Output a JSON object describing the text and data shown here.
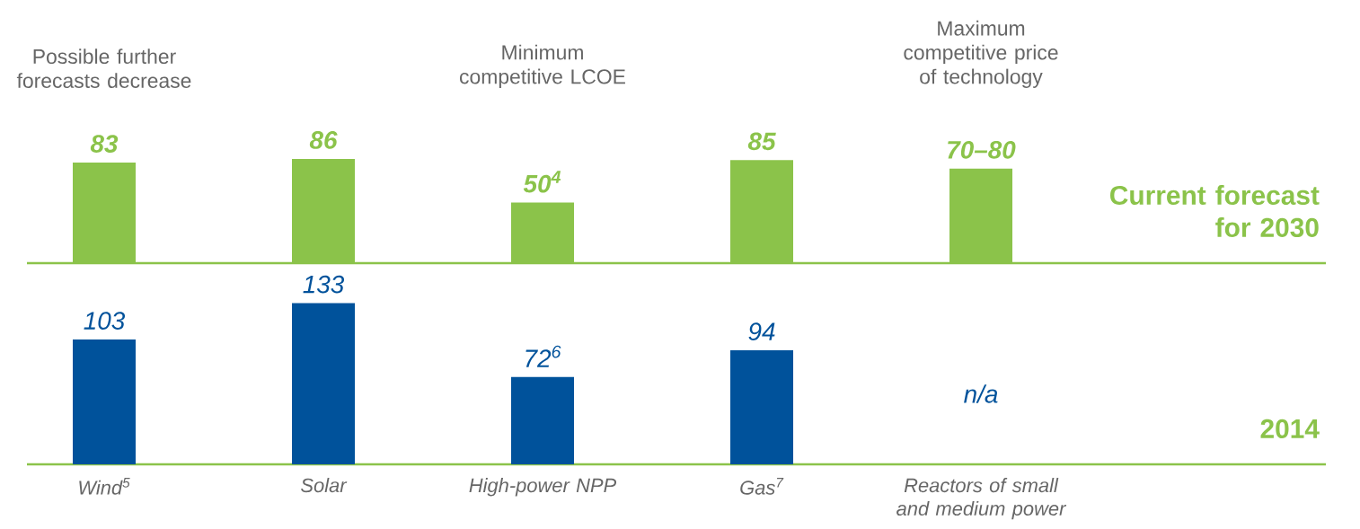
{
  "chart_data": [
    {
      "type": "bar",
      "categories": [
        null,
        null,
        null,
        null,
        null
      ],
      "series": [
        {
          "name": "Current forecast for 2030",
          "color": "#8bc34a",
          "values": [
            83,
            86,
            50,
            85,
            78
          ],
          "value_labels": [
            "83",
            "86",
            "50$^{4}$",
            "85",
            "70–80"
          ]
        }
      ],
      "annotations": [
        "Possible further forecasts decrease",
        "Minimum competitive LCOE",
        "Maximum competitive price of technology"
      ]
    },
    {
      "type": "bar",
      "categories": [
        "Wind$^{5}$",
        "Solar",
        "High-power NPP",
        "Gas$^{7}$",
        "Reactors of small and medium power"
      ],
      "series": [
        {
          "name": "2014",
          "color": "#00529b",
          "values": [
            103,
            133,
            72,
            94,
            null
          ],
          "value_labels": [
            "103",
            "133",
            "72$^{6}$",
            "94",
            "n/a"
          ]
        }
      ]
    }
  ]
}
